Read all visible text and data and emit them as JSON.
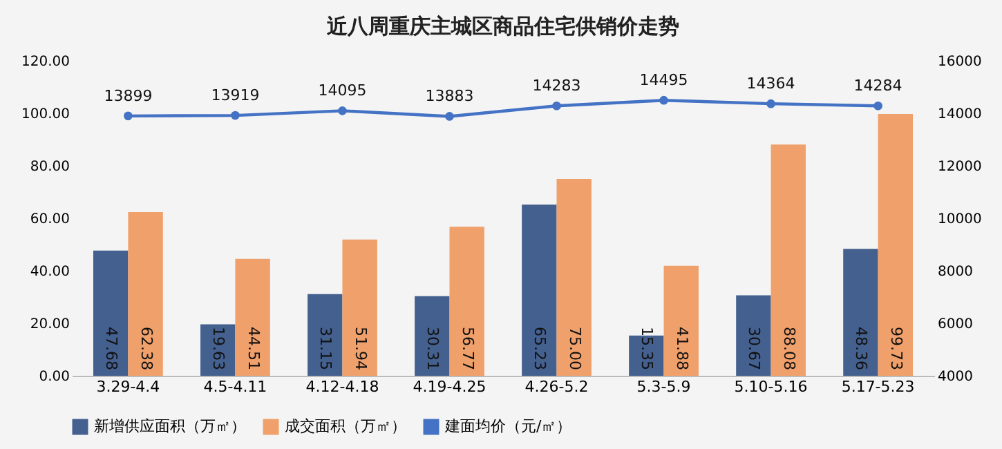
{
  "chart_data": {
    "type": "bar",
    "title": "近八周重庆主城区商品住宅供销价走势",
    "categories": [
      "3.29-4.4",
      "4.5-4.11",
      "4.12-4.18",
      "4.19-4.25",
      "4.26-5.2",
      "5.3-5.9",
      "5.10-5.16",
      "5.17-5.23"
    ],
    "series": [
      {
        "name": "新增供应面积（万㎡）",
        "color": "#44608f",
        "values": [
          47.68,
          19.63,
          31.15,
          30.31,
          65.23,
          15.35,
          30.67,
          48.36
        ],
        "value_labels": [
          "47.68",
          "19.63",
          "31.15",
          "30.31",
          "65.23",
          "15.35",
          "30.67",
          "48.36"
        ]
      },
      {
        "name": "成交面积（万㎡）",
        "color": "#f0a06a",
        "values": [
          62.38,
          44.51,
          51.94,
          56.77,
          75,
          41.88,
          88.08,
          99.73
        ],
        "value_labels": [
          "62.38",
          "44.51",
          "51.94",
          "56.77",
          "75.00",
          "41.88",
          "88.08",
          "99.73"
        ]
      },
      {
        "name": "建面均价（元/㎡）",
        "color": "#4472c4",
        "type": "line",
        "axis": "y2",
        "marker": "circle",
        "values": [
          13899,
          13919,
          14095,
          13883,
          14283,
          14495,
          14364,
          14284
        ]
      }
    ],
    "ylim": [
      0,
      120
    ],
    "yticks": [
      {
        "value": 0,
        "label": "0.00"
      },
      {
        "value": 20,
        "label": "20.00"
      },
      {
        "value": 40,
        "label": "40.00"
      },
      {
        "value": 60,
        "label": "60.00"
      },
      {
        "value": 80,
        "label": "80.00"
      },
      {
        "value": 100,
        "label": "100.00"
      },
      {
        "value": 120,
        "label": "120.00"
      }
    ],
    "y2lim": [
      4000,
      16000
    ],
    "y2ticks": [
      4000,
      6000,
      8000,
      10000,
      12000,
      14000,
      16000
    ],
    "data_labels": true,
    "grid": false,
    "legend": "bottom"
  }
}
